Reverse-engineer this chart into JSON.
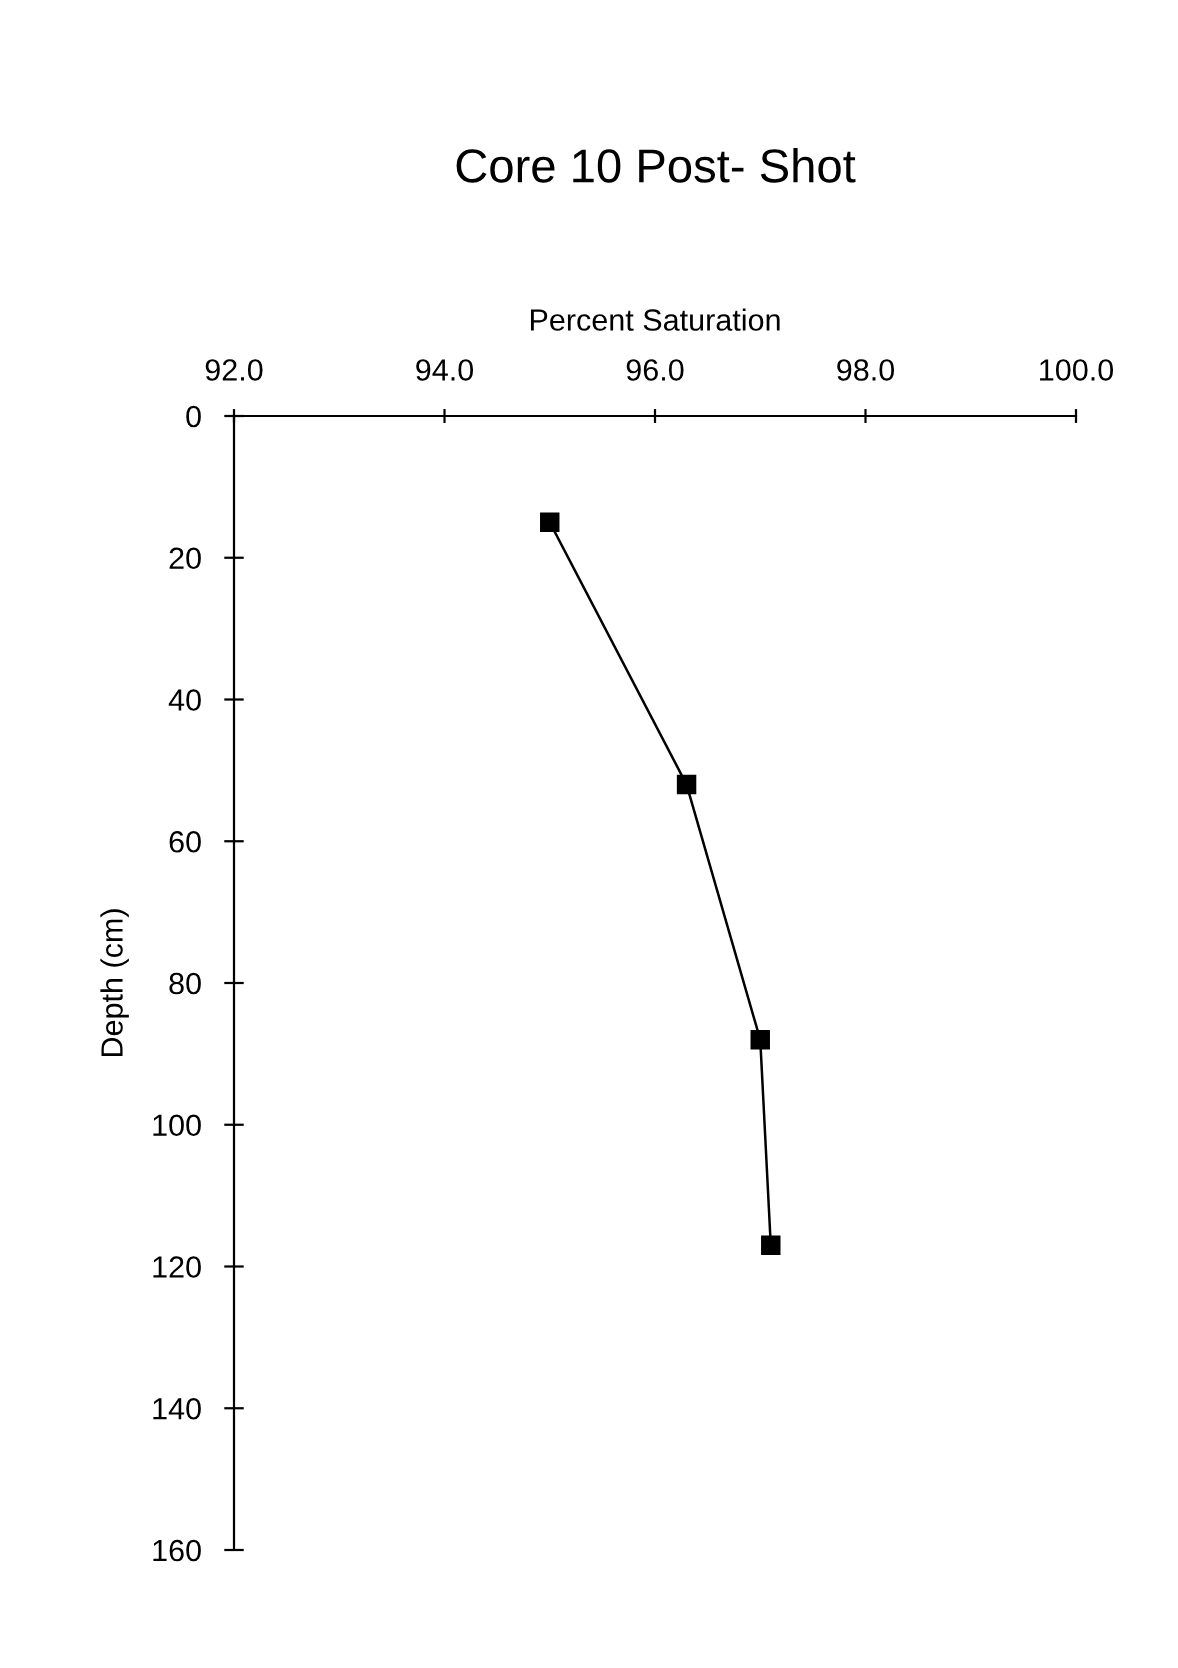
{
  "chart_data": {
    "type": "line",
    "title": "Core 10 Post- Shot",
    "xlabel": "Percent Saturation",
    "ylabel": "Depth (cm)",
    "series": [
      {
        "color": "#000000",
        "x": [
          95.0,
          96.3,
          97.0,
          97.1
        ],
        "values": [
          15,
          52,
          88,
          117
        ]
      }
    ],
    "xlim": [
      92,
      100
    ],
    "xticks": [
      {
        "value": 92,
        "label": "92.0"
      },
      {
        "value": 94,
        "label": "94.0"
      },
      {
        "value": 96,
        "label": "96.0"
      },
      {
        "value": 98,
        "label": "98.0"
      },
      {
        "value": 100,
        "label": "100.0"
      }
    ],
    "ylim": [
      160,
      0
    ],
    "yticks": [
      0,
      20,
      40,
      60,
      80,
      100,
      120,
      140,
      160
    ],
    "marker": "square",
    "line_style": "solid",
    "grid": false,
    "legend": false
  }
}
